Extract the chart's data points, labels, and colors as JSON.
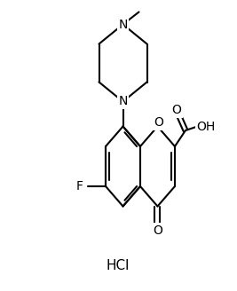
{
  "background_color": "#ffffff",
  "line_color": "#000000",
  "line_width": 1.5,
  "font_size": 10,
  "hcl_font_size": 11,
  "hcl_label": "HCl",
  "fluoro_label": "F",
  "oxygen_ring_label": "O",
  "carbonyl_o_label": "O",
  "cooh_o_label": "O",
  "oh_label": "OH",
  "n_top_label": "N",
  "n_bot_label": "N",
  "methyl_label": "/"
}
